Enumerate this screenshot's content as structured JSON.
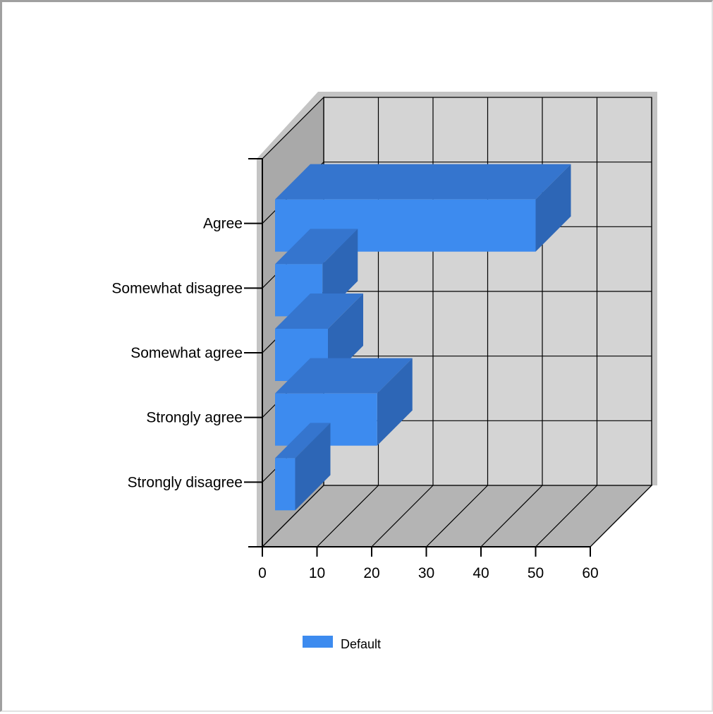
{
  "chart_data": {
    "type": "bar",
    "orientation": "horizontal",
    "style": "3d",
    "categories": [
      "Strongly disagree",
      "Strongly agree",
      "Somewhat agree",
      "Somewhat disagree",
      "Agree"
    ],
    "series": [
      {
        "name": "Default",
        "values": [
          6,
          21,
          12,
          11,
          50
        ],
        "color": "#3d8bef"
      }
    ],
    "xlim": [
      0,
      60
    ],
    "x_ticks": [
      "0",
      "10",
      "20",
      "30",
      "40",
      "50",
      "60"
    ],
    "grid": true,
    "legend_position": "bottom",
    "colors": {
      "bar_front": "#3d8bef",
      "bar_top": "#3575ce",
      "bar_side": "#2d66b6",
      "back_wall": "#d4d4d4",
      "side_wall": "#a9a9a9",
      "floor": "#b4b4b4",
      "shadow": "#c4c4c4"
    }
  }
}
